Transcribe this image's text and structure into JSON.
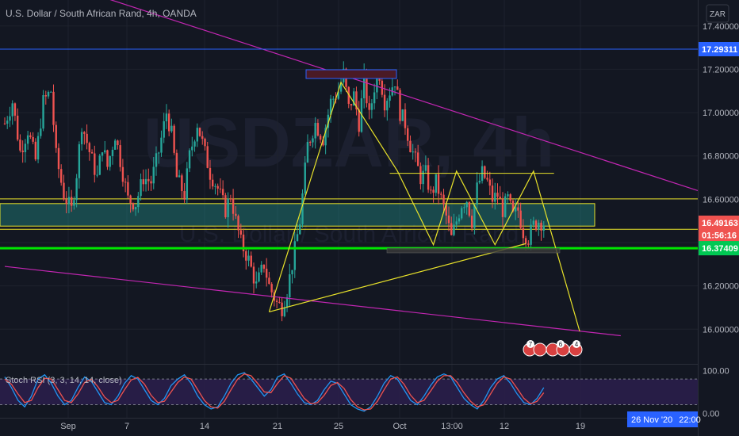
{
  "header": {
    "title": "U.S. Dollar / South African Rand, 4h, OANDA",
    "currency_button": "ZAR"
  },
  "watermark": {
    "symbol": "USDZAR, 4h",
    "name": "U.S. Dollar / South African Rand"
  },
  "colors": {
    "background": "#131722",
    "grid": "#1e222d",
    "up": "#26a69a",
    "down": "#ef5350",
    "magenta": "#c226b2",
    "yellow": "#e8e22a",
    "green_line": "#00e600",
    "blue_line": "#2962ff",
    "rsi_k": "#2196f3",
    "rsi_d": "#ef5350",
    "rsi_band": "#2a1e4a"
  },
  "chart_data": [
    {
      "type": "candlestick",
      "title": "U.S. Dollar / South African Rand, 4h, OANDA",
      "y_axis": {
        "range": [
          15.84,
          17.52
        ],
        "ticks": [
          "17.40000",
          "17.20000",
          "17.00000",
          "16.80000",
          "16.60000",
          "16.40000",
          "16.20000",
          "16.00000"
        ]
      },
      "x_axis": {
        "ticks": [
          "Sep",
          "7",
          "14",
          "21",
          "25",
          "Oct",
          "13:00",
          "12",
          "19"
        ]
      },
      "price_labels": [
        {
          "label": "17.29311",
          "value": 17.29311,
          "color": "#2962ff"
        },
        {
          "label": "16.49163",
          "value": 16.49163,
          "color": "#ef5350"
        },
        {
          "label": "01:56:16",
          "value": 16.435,
          "color": "#ef5350"
        },
        {
          "label": "16.37409",
          "value": 16.37409,
          "color": "#00c853"
        }
      ],
      "date_label": "26 Nov '20",
      "time_label": "22:00",
      "price_path": [
        [
          0,
          16.95
        ],
        [
          3,
          17.05
        ],
        [
          6,
          16.82
        ],
        [
          9,
          16.92
        ],
        [
          12,
          16.78
        ],
        [
          15,
          17.05
        ],
        [
          18,
          17.1
        ],
        [
          20,
          16.8
        ],
        [
          23,
          16.62
        ],
        [
          26,
          16.55
        ],
        [
          28,
          16.72
        ],
        [
          30,
          16.95
        ],
        [
          33,
          16.82
        ],
        [
          36,
          16.7
        ],
        [
          38,
          16.85
        ],
        [
          40,
          16.75
        ],
        [
          43,
          16.9
        ],
        [
          46,
          16.72
        ],
        [
          48,
          16.6
        ],
        [
          51,
          16.58
        ],
        [
          54,
          16.7
        ],
        [
          57,
          16.68
        ],
        [
          60,
          16.82
        ],
        [
          63,
          17.0
        ],
        [
          65,
          16.9
        ],
        [
          67,
          16.7
        ],
        [
          70,
          16.62
        ],
        [
          72,
          16.8
        ],
        [
          75,
          16.95
        ],
        [
          77,
          16.86
        ],
        [
          80,
          16.72
        ],
        [
          83,
          16.65
        ],
        [
          86,
          16.55
        ],
        [
          88,
          16.62
        ],
        [
          90,
          16.5
        ],
        [
          92,
          16.4
        ],
        [
          95,
          16.32
        ],
        [
          98,
          16.2
        ],
        [
          101,
          16.3
        ],
        [
          103,
          16.2
        ],
        [
          106,
          16.12
        ],
        [
          108,
          16.1
        ],
        [
          110,
          16.18
        ],
        [
          112,
          16.3
        ],
        [
          115,
          16.5
        ],
        [
          118,
          16.85
        ],
        [
          121,
          16.95
        ],
        [
          124,
          16.88
        ],
        [
          127,
          17.05
        ],
        [
          130,
          17.1
        ],
        [
          132,
          17.18
        ],
        [
          134,
          17.02
        ],
        [
          136,
          17.08
        ],
        [
          138,
          16.95
        ],
        [
          140,
          17.15
        ],
        [
          142,
          16.98
        ],
        [
          144,
          17.12
        ],
        [
          146,
          17.18
        ],
        [
          148,
          17.05
        ],
        [
          150,
          17.1
        ],
        [
          152,
          17.15
        ],
        [
          154,
          17.0
        ],
        [
          156,
          16.95
        ],
        [
          158,
          16.85
        ],
        [
          160,
          16.78
        ],
        [
          162,
          16.7
        ],
        [
          164,
          16.72
        ],
        [
          166,
          16.62
        ],
        [
          168,
          16.68
        ],
        [
          170,
          16.6
        ],
        [
          172,
          16.52
        ],
        [
          174,
          16.42
        ],
        [
          176,
          16.5
        ],
        [
          178,
          16.58
        ],
        [
          180,
          16.6
        ],
        [
          182,
          16.5
        ],
        [
          184,
          16.65
        ],
        [
          186,
          16.72
        ],
        [
          188,
          16.68
        ],
        [
          190,
          16.6
        ],
        [
          192,
          16.62
        ],
        [
          194,
          16.55
        ],
        [
          196,
          16.6
        ],
        [
          198,
          16.52
        ],
        [
          200,
          16.55
        ],
        [
          202,
          16.45
        ],
        [
          204,
          16.42
        ],
        [
          206,
          16.48
        ],
        [
          208,
          16.5
        ],
        [
          210,
          16.49
        ]
      ],
      "annotations": [
        {
          "kind": "trendline",
          "color": "#c226b2",
          "from": [
            0,
            17.68
          ],
          "to": [
            270,
            16.64
          ]
        },
        {
          "kind": "trendline",
          "color": "#c226b2",
          "from": [
            0,
            16.29
          ],
          "to": [
            240,
            15.97
          ]
        },
        {
          "kind": "hline",
          "color": "#2962ff",
          "value": 17.29311
        },
        {
          "kind": "hline",
          "color": "#00e600",
          "value": 16.37409
        },
        {
          "kind": "zone",
          "color": "#26a69a",
          "from_value": 16.58,
          "to_value": 16.52
        },
        {
          "kind": "polyline",
          "color": "#e8e22a",
          "points": [
            [
              103,
              16.08
            ],
            [
              131,
              17.14
            ],
            [
              153,
              16.73
            ],
            [
              167,
              16.39
            ],
            [
              176,
              16.73
            ],
            [
              191,
              16.39
            ],
            [
              206,
              16.73
            ],
            [
              224,
              15.99
            ]
          ]
        }
      ]
    },
    {
      "type": "line",
      "title": "Stoch RSI (3, 3, 14, 14, close)",
      "y_axis": {
        "range": [
          -5,
          110
        ],
        "ticks": [
          "100.00",
          "0.00"
        ],
        "band": [
          20,
          80
        ]
      },
      "series": [
        {
          "name": "K",
          "color": "#2196f3",
          "values": [
            85,
            60,
            30,
            15,
            40,
            80,
            90,
            70,
            40,
            20,
            30,
            60,
            85,
            75,
            50,
            25,
            20,
            40,
            70,
            88,
            80,
            55,
            30,
            20,
            35,
            65,
            80,
            90,
            70,
            40,
            20,
            10,
            15,
            40,
            70,
            90,
            95,
            80,
            60,
            40,
            55,
            85,
            92,
            70,
            45,
            25,
            20,
            30,
            55,
            75,
            70,
            45,
            20,
            10,
            5,
            15,
            40,
            70,
            88,
            80,
            55,
            30,
            20,
            40,
            65,
            85,
            92,
            85,
            60,
            35,
            20,
            10,
            30,
            60,
            80,
            88,
            70,
            45,
            25,
            20,
            35,
            60
          ]
        },
        {
          "name": "D",
          "color": "#ef5350",
          "values": [
            80,
            68,
            45,
            25,
            30,
            60,
            82,
            80,
            55,
            30,
            25,
            45,
            72,
            80,
            62,
            38,
            25,
            30,
            55,
            78,
            84,
            68,
            42,
            25,
            28,
            50,
            72,
            85,
            80,
            55,
            30,
            15,
            12,
            28,
            55,
            80,
            92,
            88,
            70,
            50,
            48,
            70,
            88,
            82,
            58,
            35,
            22,
            25,
            42,
            65,
            72,
            58,
            32,
            15,
            8,
            10,
            28,
            55,
            80,
            85,
            68,
            42,
            25,
            30,
            52,
            75,
            88,
            88,
            72,
            48,
            28,
            15,
            20,
            45,
            70,
            85,
            80,
            58,
            35,
            22,
            28,
            48
          ]
        }
      ]
    }
  ]
}
